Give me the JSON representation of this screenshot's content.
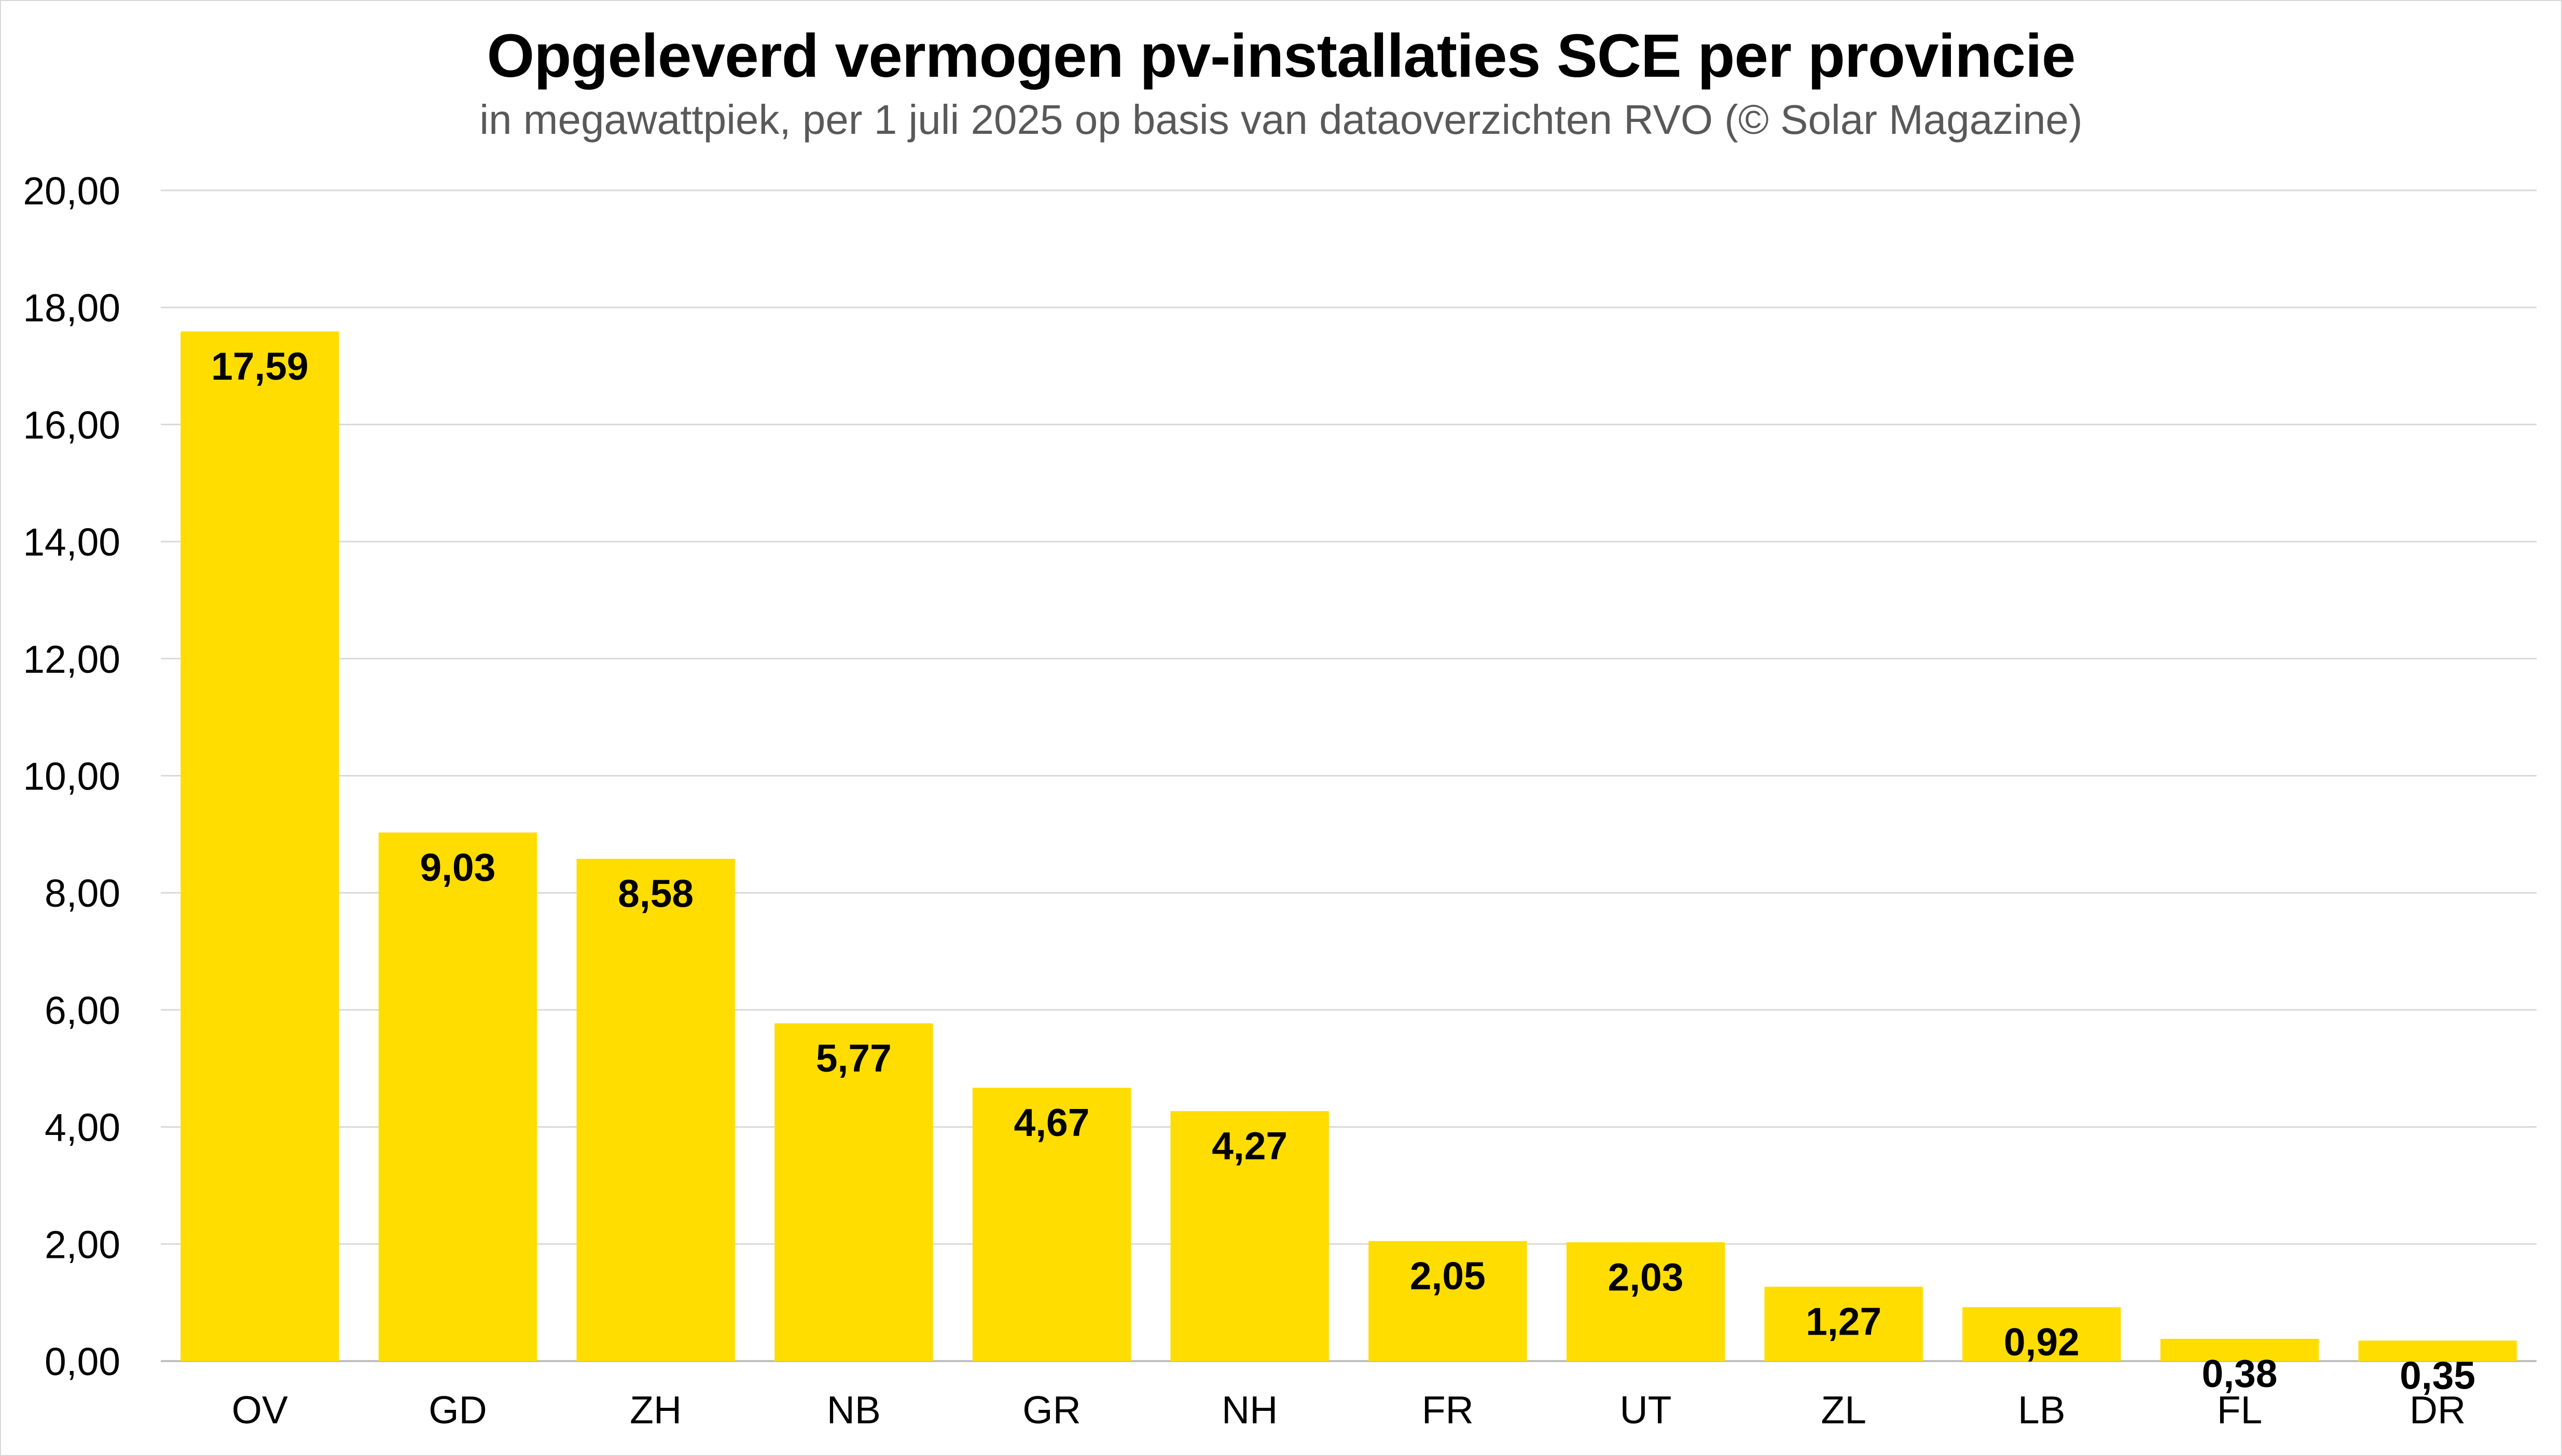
{
  "chart_data": {
    "type": "bar",
    "title": "Opgeleverd vermogen pv-installaties SCE per provincie",
    "subtitle": "in megawattpiek, per 1 juli 2025 op basis van dataoverzichten RVO (© Solar Magazine)",
    "categories": [
      "OV",
      "GD",
      "ZH",
      "NB",
      "GR",
      "NH",
      "FR",
      "UT",
      "ZL",
      "LB",
      "FL",
      "DR"
    ],
    "values": [
      17.59,
      9.03,
      8.58,
      5.77,
      4.67,
      4.27,
      2.05,
      2.03,
      1.27,
      0.92,
      0.38,
      0.35
    ],
    "data_labels": [
      "17,59",
      "9,03",
      "8,58",
      "5,77",
      "4,67",
      "4,27",
      "2,05",
      "2,03",
      "1,27",
      "0,92",
      "0,38",
      "0,35"
    ],
    "ylim": [
      0,
      20
    ],
    "yticks": [
      0,
      2,
      4,
      6,
      8,
      10,
      12,
      14,
      16,
      18,
      20
    ],
    "ytick_labels": [
      "0,00",
      "2,00",
      "4,00",
      "6,00",
      "8,00",
      "10,00",
      "12,00",
      "14,00",
      "16,00",
      "18,00",
      "20,00"
    ],
    "grid": true,
    "legend": "none",
    "xlabel": "",
    "ylabel": ""
  },
  "colors": {
    "bar": "#FFDD00",
    "grid": "#d9d9d9",
    "axis": "#bfbfbf",
    "title": "#000000",
    "subtitle": "#595959"
  }
}
